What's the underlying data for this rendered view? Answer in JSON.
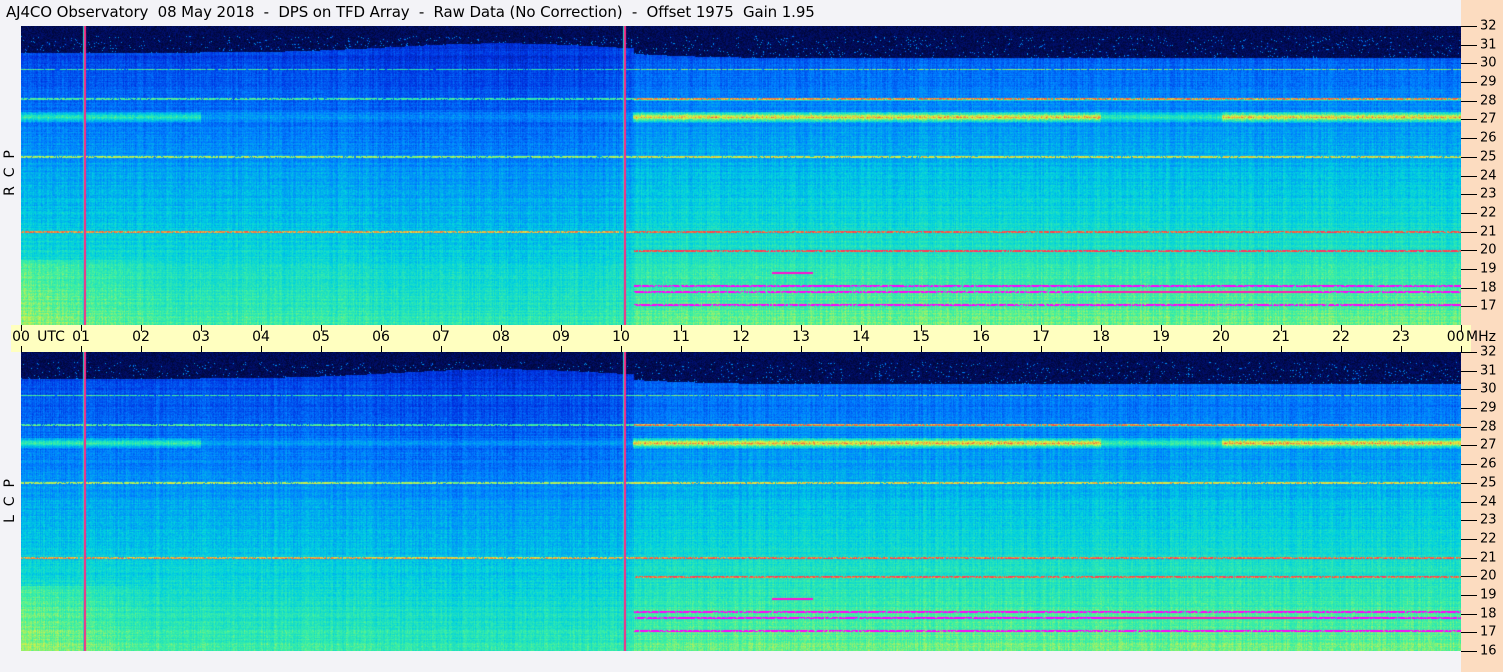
{
  "title": "AJ4CO Observatory  08 May 2018  -  DPS on TFD Array  -  Raw Data (No Correction)  -  Offset 1975  Gain 1.95",
  "chart_data": {
    "type": "heatmap",
    "panels": [
      {
        "label": "R  C  P",
        "polarization": "RCP"
      },
      {
        "label": "L  C  P",
        "polarization": "LCP"
      }
    ],
    "x_axis": {
      "unit_label": "UTC",
      "range_hours": [
        0,
        24
      ],
      "ticks": [
        "00",
        "01",
        "02",
        "03",
        "04",
        "05",
        "06",
        "07",
        "08",
        "09",
        "10",
        "11",
        "12",
        "13",
        "14",
        "15",
        "16",
        "17",
        "18",
        "19",
        "20",
        "21",
        "22",
        "23",
        "00"
      ]
    },
    "y_axis": {
      "unit_label": "MHz",
      "range": [
        16,
        32
      ],
      "ticks": [
        "32",
        "31",
        "30",
        "29",
        "28",
        "27",
        "26",
        "25",
        "24",
        "23",
        "22",
        "21",
        "20",
        "19",
        "18",
        "17",
        "16"
      ]
    },
    "colormap": [
      "#000010",
      "#001070",
      "#0030e0",
      "#0080ff",
      "#00d0e0",
      "#40f0a0",
      "#e0f040",
      "#ff4040",
      "#ff00ff"
    ],
    "features": {
      "vertical_marker_hours": [
        1.05,
        10.05
      ],
      "strong_band_mhz": 27.1,
      "rfi_lines_mhz": [
        17.1,
        17.8,
        18.1,
        20.0,
        21.0,
        25.0,
        28.1,
        29.7
      ]
    }
  }
}
